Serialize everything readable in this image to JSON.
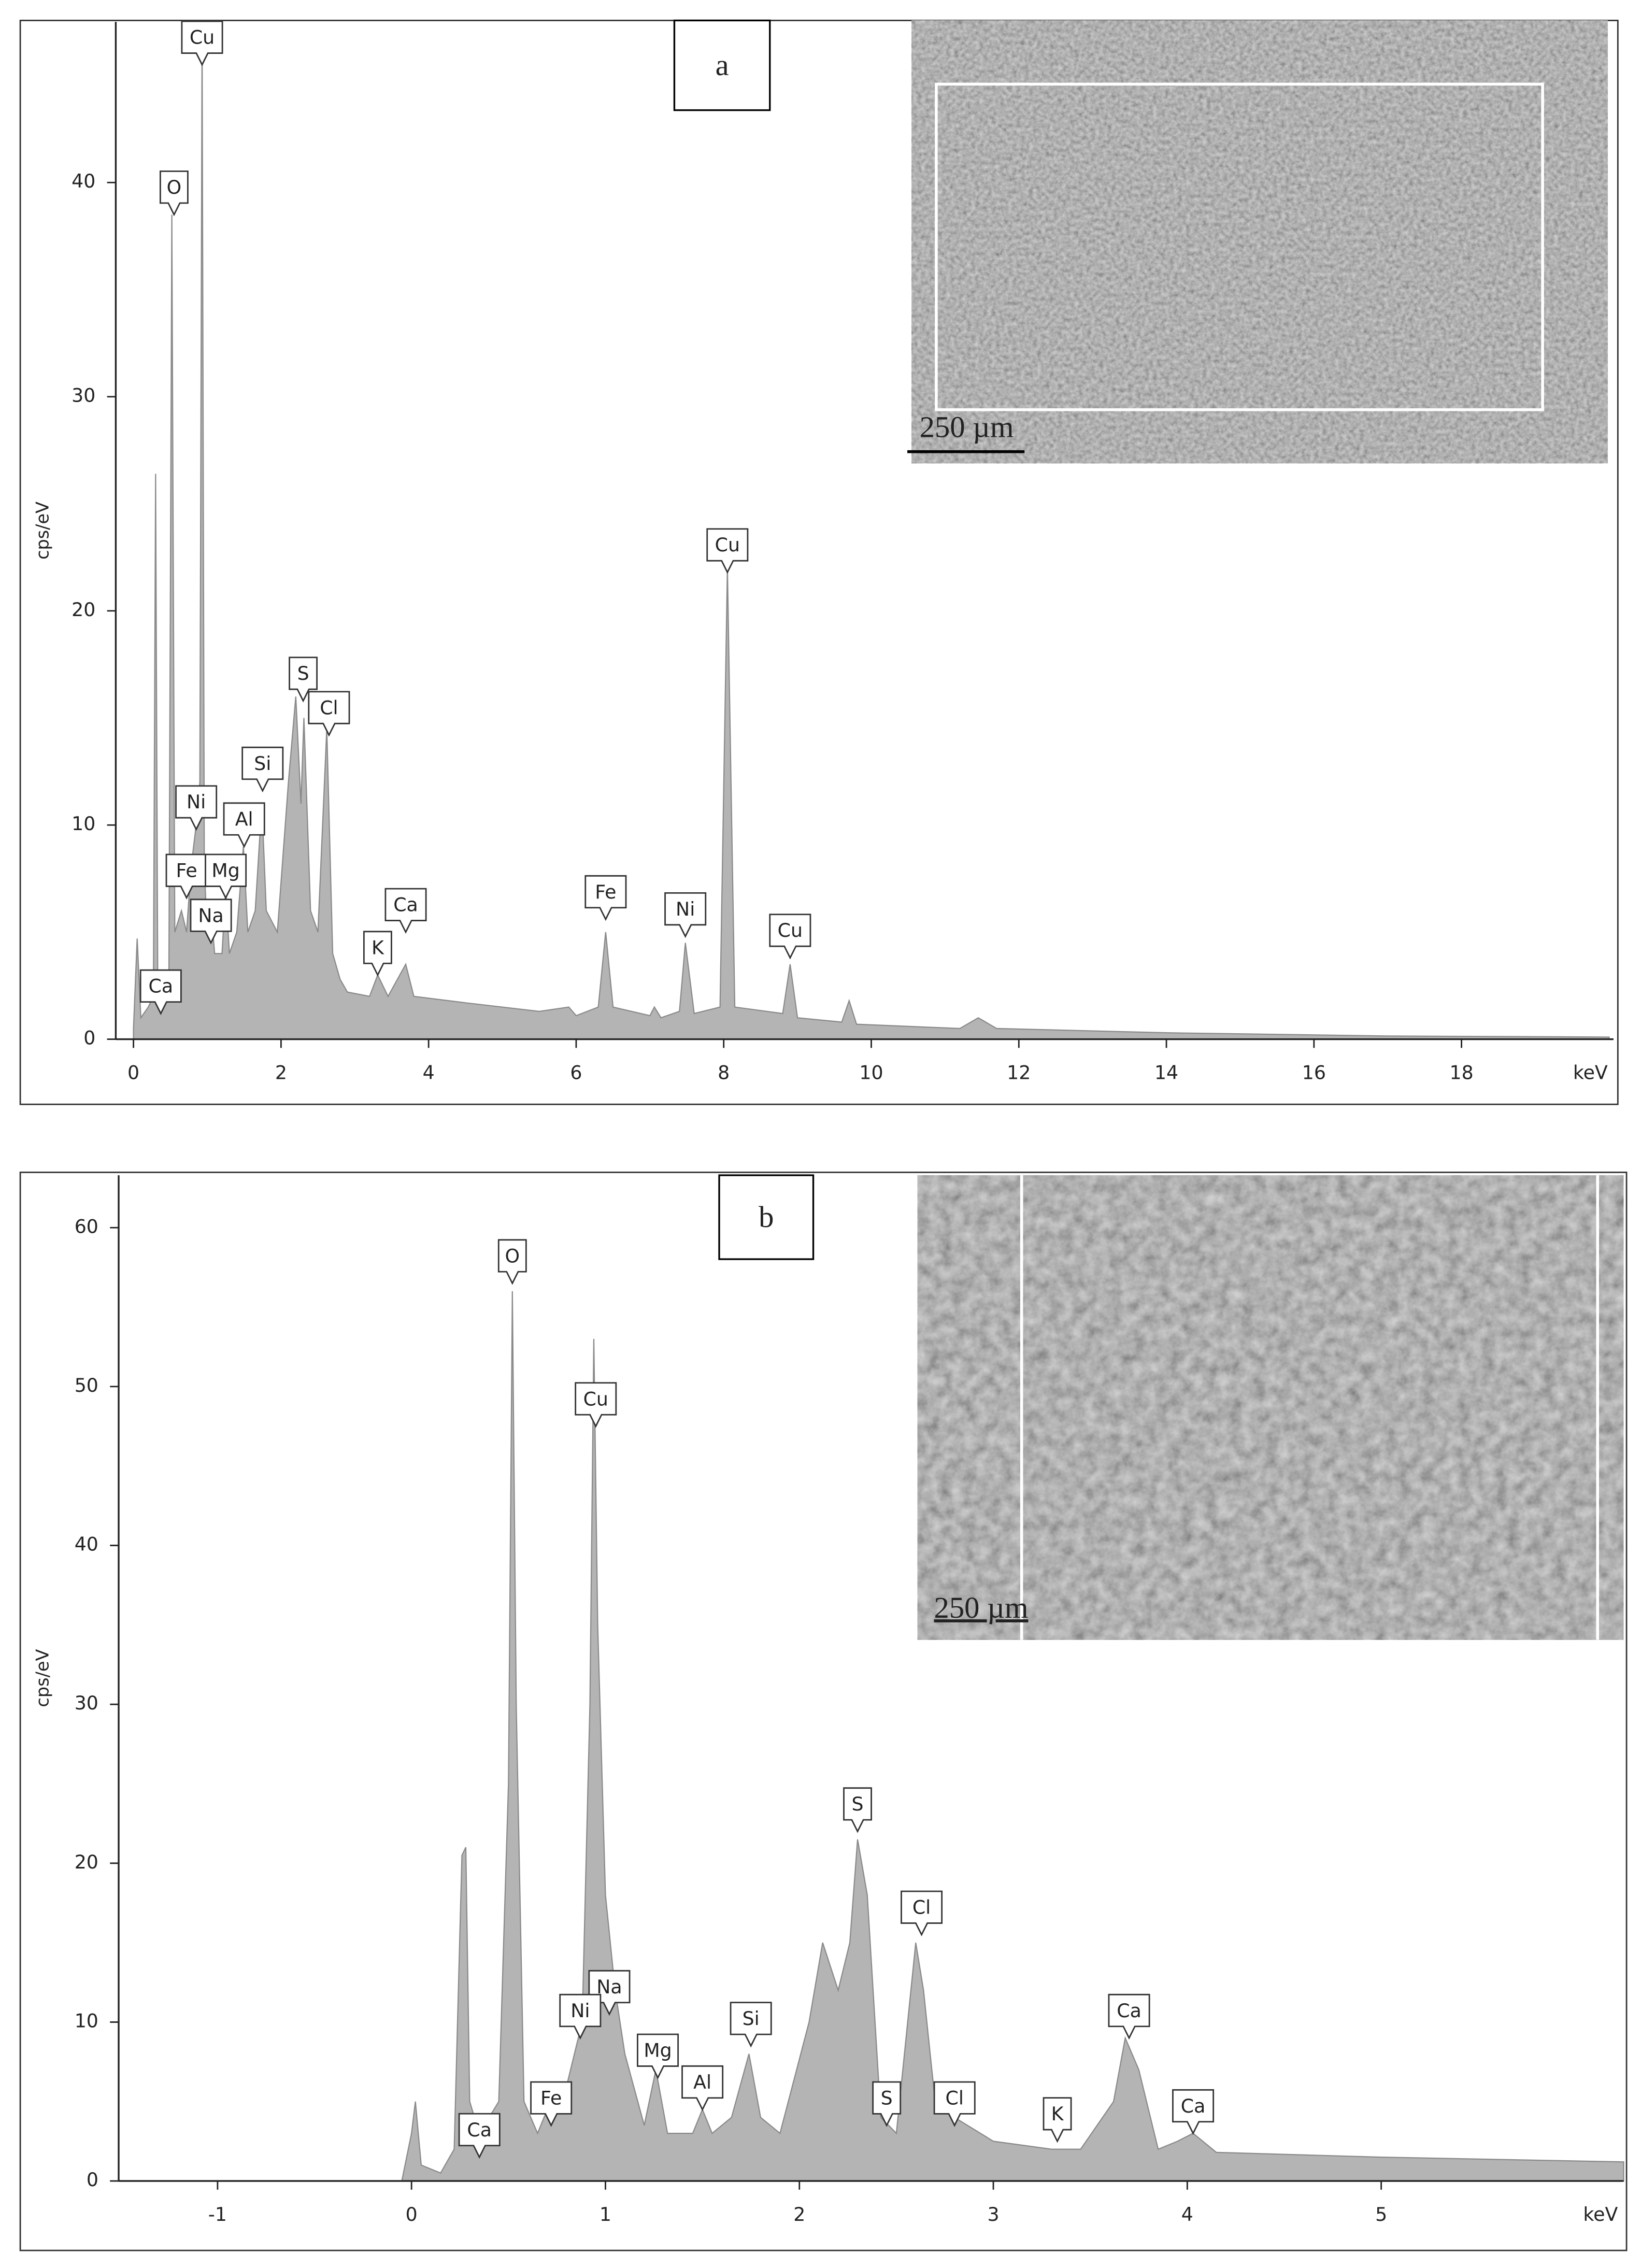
{
  "chart_data": [
    {
      "type": "area",
      "label": "a",
      "y_label": "cps/eV",
      "x_unit": "keV",
      "scale_bar": "250 µm",
      "color": "#b4b4b4",
      "xlim": [
        -0.24,
        20.06
      ],
      "xticks": [
        0,
        2,
        4,
        6,
        8,
        10,
        12,
        14,
        16,
        18
      ],
      "ylim": [
        0,
        47.5
      ],
      "yticks": [
        0,
        10,
        20,
        30,
        40
      ],
      "x": [
        0,
        0.05,
        0.1,
        0.2,
        0.27,
        0.3,
        0.33,
        0.4,
        0.48,
        0.52,
        0.56,
        0.65,
        0.72,
        0.78,
        0.85,
        0.9,
        0.93,
        0.96,
        1.0,
        1.04,
        1.1,
        1.2,
        1.25,
        1.3,
        1.4,
        1.49,
        1.55,
        1.65,
        1.74,
        1.8,
        1.95,
        2.1,
        2.2,
        2.27,
        2.31,
        2.4,
        2.5,
        2.62,
        2.7,
        2.8,
        2.9,
        3.2,
        3.31,
        3.45,
        3.69,
        3.8,
        4.5,
        5.5,
        5.9,
        6.0,
        6.3,
        6.4,
        6.5,
        7.0,
        7.06,
        7.15,
        7.4,
        7.48,
        7.6,
        7.95,
        8.05,
        8.15,
        8.8,
        8.9,
        9.0,
        9.6,
        9.7,
        9.8,
        11.2,
        11.45,
        11.7,
        14,
        17,
        20
      ],
      "values": [
        0.5,
        4.7,
        1,
        1.5,
        2,
        26.4,
        2,
        2.5,
        3,
        38.5,
        5,
        6,
        5,
        8,
        10,
        12,
        47,
        8,
        5,
        6.5,
        4,
        4,
        7,
        4,
        5,
        9,
        5,
        6,
        11,
        6,
        5,
        12,
        16,
        11,
        15,
        6,
        5,
        14.5,
        4,
        2.8,
        2.2,
        2,
        3,
        2,
        3.5,
        2,
        1.7,
        1.3,
        1.5,
        1.1,
        1.5,
        5,
        1.5,
        1.1,
        1.5,
        1,
        1.3,
        4.5,
        1.2,
        1.5,
        22,
        1.5,
        1.2,
        3.5,
        1,
        0.8,
        1.8,
        0.7,
        0.5,
        1,
        0.5,
        0.3,
        0.15,
        0.1
      ],
      "annotations": [
        {
          "text": "Cu",
          "x": 0.93,
          "y": 45.5
        },
        {
          "text": "O",
          "x": 0.55,
          "y": 38.5
        },
        {
          "text": "Cu",
          "x": 8.05,
          "y": 21.8
        },
        {
          "text": "S",
          "x": 2.3,
          "y": 15.8
        },
        {
          "text": "Cl",
          "x": 2.65,
          "y": 14.2
        },
        {
          "text": "Si",
          "x": 1.75,
          "y": 11.6
        },
        {
          "text": "Ni",
          "x": 0.85,
          "y": 9.8
        },
        {
          "text": "Al",
          "x": 1.5,
          "y": 9.0
        },
        {
          "text": "Fe",
          "x": 0.72,
          "y": 6.6
        },
        {
          "text": "Mg",
          "x": 1.25,
          "y": 6.6
        },
        {
          "text": "Na",
          "x": 1.05,
          "y": 4.5
        },
        {
          "text": "Ca",
          "x": 0.37,
          "y": 1.2
        },
        {
          "text": "K",
          "x": 3.31,
          "y": 3.0
        },
        {
          "text": "Ca",
          "x": 3.69,
          "y": 5.0
        },
        {
          "text": "Fe",
          "x": 6.4,
          "y": 5.6
        },
        {
          "text": "Ni",
          "x": 7.48,
          "y": 4.8
        },
        {
          "text": "Cu",
          "x": 8.9,
          "y": 3.8
        }
      ]
    },
    {
      "type": "area",
      "label": "b",
      "y_label": "cps/eV",
      "x_unit": "keV",
      "scale_bar": "250 µm",
      "color": "#b4b4b4",
      "xlim": [
        -1.51,
        6.25
      ],
      "xticks": [
        -1,
        0,
        1,
        2,
        3,
        4,
        5
      ],
      "ylim": [
        0,
        63.3
      ],
      "yticks": [
        0,
        10,
        20,
        30,
        40,
        50,
        60
      ],
      "x": [
        -1.51,
        -0.05,
        0,
        0.02,
        0.05,
        0.15,
        0.22,
        0.26,
        0.28,
        0.3,
        0.35,
        0.45,
        0.5,
        0.52,
        0.54,
        0.58,
        0.65,
        0.7,
        0.8,
        0.88,
        0.92,
        0.94,
        0.96,
        1.0,
        1.05,
        1.1,
        1.2,
        1.26,
        1.32,
        1.45,
        1.5,
        1.55,
        1.65,
        1.74,
        1.8,
        1.9,
        2.05,
        2.12,
        2.2,
        2.26,
        2.3,
        2.35,
        2.42,
        2.5,
        2.6,
        2.64,
        2.7,
        2.8,
        3.0,
        3.3,
        3.45,
        3.62,
        3.68,
        3.75,
        3.85,
        3.95,
        4.03,
        4.15,
        5,
        6.25
      ],
      "values": [
        0,
        0,
        3,
        5,
        1,
        0.5,
        2,
        20.5,
        21,
        5,
        3,
        5,
        25,
        56,
        30,
        5,
        3,
        4.5,
        6,
        10,
        30,
        53,
        35,
        18,
        12,
        8,
        3.5,
        7,
        3,
        3,
        4.5,
        3,
        4,
        8,
        4,
        3,
        10,
        15,
        12,
        15,
        21.5,
        18,
        4,
        3,
        15,
        12,
        5,
        4,
        2.5,
        2,
        2,
        5,
        9,
        7,
        2,
        2.5,
        3,
        1.8,
        1.5,
        1.2
      ],
      "annotations": [
        {
          "text": "O",
          "x": 0.52,
          "y": 56.5
        },
        {
          "text": "Cu",
          "x": 0.95,
          "y": 47.5
        },
        {
          "text": "S",
          "x": 2.3,
          "y": 22
        },
        {
          "text": "Cl",
          "x": 2.63,
          "y": 15.5
        },
        {
          "text": "Na",
          "x": 1.02,
          "y": 10.5
        },
        {
          "text": "Ni",
          "x": 0.87,
          "y": 9
        },
        {
          "text": "Mg",
          "x": 1.27,
          "y": 6.5
        },
        {
          "text": "Si",
          "x": 1.75,
          "y": 8.5
        },
        {
          "text": "Al",
          "x": 1.5,
          "y": 4.5
        },
        {
          "text": "Fe",
          "x": 0.72,
          "y": 3.5
        },
        {
          "text": "Ca",
          "x": 0.35,
          "y": 1.5
        },
        {
          "text": "S",
          "x": 2.45,
          "y": 3.5
        },
        {
          "text": "Cl",
          "x": 2.8,
          "y": 3.5
        },
        {
          "text": "K",
          "x": 3.33,
          "y": 2.5
        },
        {
          "text": "Ca",
          "x": 3.7,
          "y": 9
        },
        {
          "text": "Ca",
          "x": 4.03,
          "y": 3
        }
      ]
    }
  ]
}
